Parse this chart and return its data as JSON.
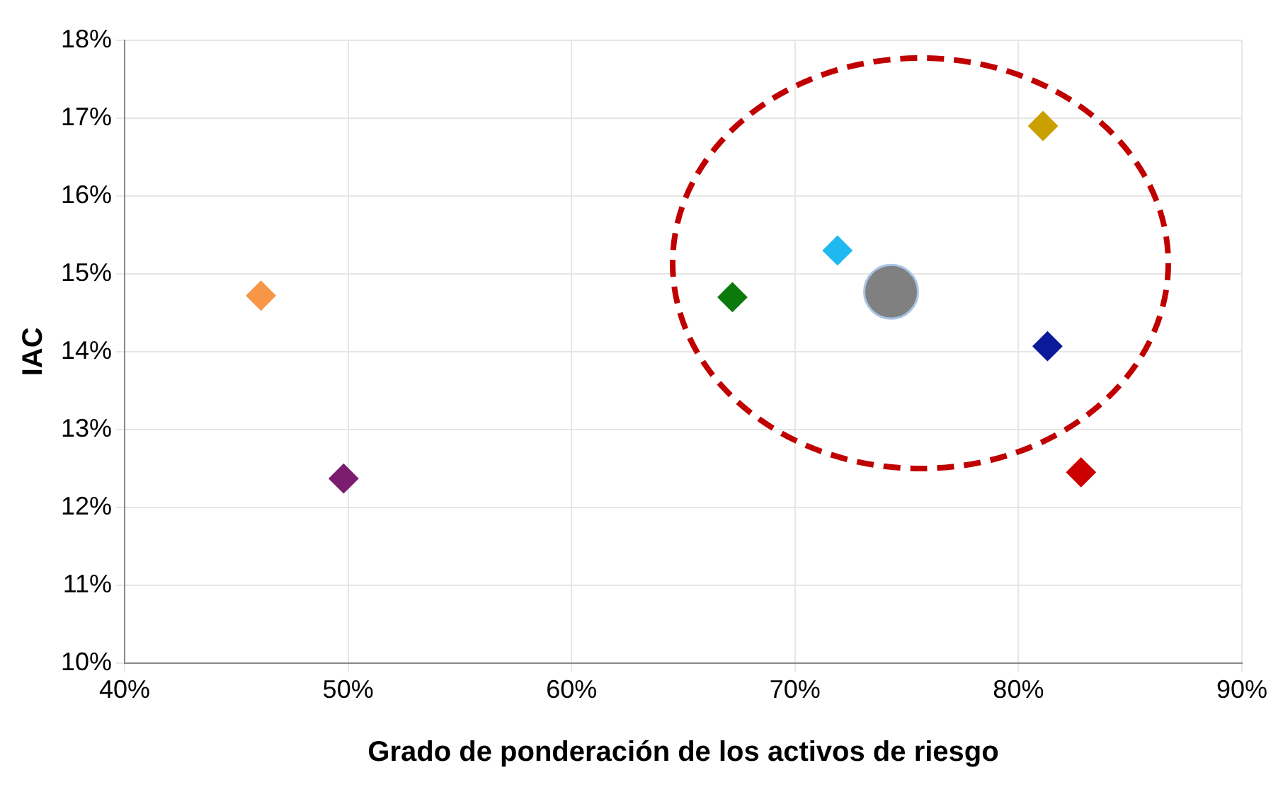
{
  "chart_data": {
    "type": "scatter",
    "xlabel": "Grado de ponderación de los activos de riesgo",
    "ylabel": "IAC",
    "xlim": [
      40,
      90
    ],
    "xticks": [
      {
        "value": 40,
        "label": "40%"
      },
      {
        "value": 50,
        "label": "50%"
      },
      {
        "value": 60,
        "label": "60%"
      },
      {
        "value": 70,
        "label": "70%"
      },
      {
        "value": 80,
        "label": "80%"
      },
      {
        "value": 90,
        "label": "90%"
      }
    ],
    "ylim": [
      10,
      18
    ],
    "yticks": [
      {
        "value": 10,
        "label": "10%"
      },
      {
        "value": 11,
        "label": "11%"
      },
      {
        "value": 12,
        "label": "12%"
      },
      {
        "value": 13,
        "label": "13%"
      },
      {
        "value": 14,
        "label": "14%"
      },
      {
        "value": 15,
        "label": "15%"
      },
      {
        "value": 16,
        "label": "16%"
      },
      {
        "value": 17,
        "label": "17%"
      },
      {
        "value": 18,
        "label": "18%"
      }
    ],
    "grid": true,
    "legend": false,
    "series": [
      {
        "marker": "diamond",
        "x": [
          46.1,
          49.8,
          67.2,
          71.9,
          81.1,
          81.3,
          82.8
        ],
        "values": [
          14.72,
          12.37,
          14.7,
          15.3,
          16.9,
          14.07,
          12.45
        ],
        "colors": [
          "#f79646",
          "#7b1c6e",
          "#0b7a0b",
          "#1fb8ef",
          "#c9a000",
          "#0a1a99",
          "#cc0000"
        ]
      },
      {
        "marker": "circle",
        "color": "#808080",
        "x": [
          74.3
        ],
        "values": [
          14.77
        ]
      }
    ]
  }
}
